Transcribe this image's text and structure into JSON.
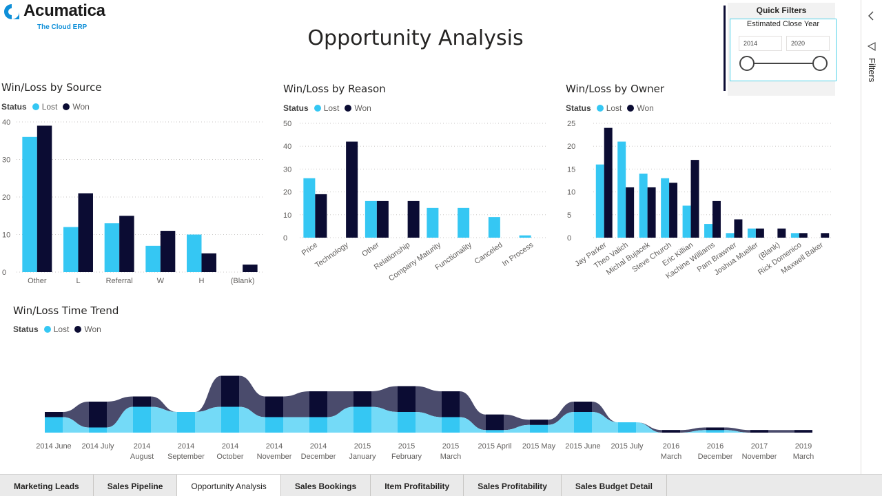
{
  "app": {
    "logo_text": "Acumatica",
    "logo_tagline": "The Cloud ERP",
    "page_title": "Opportunity Analysis"
  },
  "colors": {
    "lost": "#35c7f3",
    "won": "#0b0c33",
    "lost_area": "#74daf7",
    "won_area": "#4a4b6c"
  },
  "quick_filters": {
    "title": "Quick Filters",
    "field_label": "Estimated Close Year",
    "from_value": "2014",
    "to_value": "2020"
  },
  "filters_pane": {
    "label": "Filters",
    "collapse_icon": "chevron-left-icon",
    "filter_icon": "funnel-icon"
  },
  "legend": {
    "status_label": "Status",
    "lost_label": "Lost",
    "won_label": "Won"
  },
  "chart_data": [
    {
      "id": "source",
      "type": "bar",
      "title": "Win/Loss by Source",
      "categories": [
        "Other",
        "L",
        "Referral",
        "W",
        "H",
        "(Blank)"
      ],
      "series": [
        {
          "name": "Lost",
          "values": [
            36,
            12,
            13,
            7,
            10,
            0
          ]
        },
        {
          "name": "Won",
          "values": [
            39,
            21,
            15,
            11,
            5,
            2
          ]
        }
      ],
      "ylim": [
        0,
        40
      ],
      "yticks": [
        0,
        10,
        20,
        30,
        40
      ]
    },
    {
      "id": "reason",
      "type": "bar",
      "title": "Win/Loss by Reason",
      "categories": [
        "Price",
        "Technology",
        "Other",
        "Relationship",
        "Company Maturity",
        "Functionality",
        "Canceled",
        "In Process"
      ],
      "series": [
        {
          "name": "Lost",
          "values": [
            26,
            0,
            16,
            0,
            13,
            13,
            9,
            1
          ]
        },
        {
          "name": "Won",
          "values": [
            19,
            42,
            16,
            16,
            0,
            0,
            0,
            0
          ]
        }
      ],
      "ylim": [
        0,
        50
      ],
      "yticks": [
        0,
        10,
        20,
        30,
        40,
        50
      ]
    },
    {
      "id": "owner",
      "type": "bar",
      "title": "Win/Loss by Owner",
      "categories": [
        "Jay Parker",
        "Theo Valich",
        "Michal Bujacek",
        "Steve Church",
        "Eric Killian",
        "Kachine Williams",
        "Pam Brawner",
        "Joshua Mueller",
        "(Blank)",
        "Rick Domenico",
        "Maxwell Baker"
      ],
      "series": [
        {
          "name": "Lost",
          "values": [
            16,
            21,
            14,
            13,
            7,
            3,
            1,
            2,
            0,
            1,
            0
          ]
        },
        {
          "name": "Won",
          "values": [
            24,
            11,
            11,
            12,
            17,
            8,
            4,
            2,
            2,
            1,
            1
          ]
        }
      ],
      "ylim": [
        0,
        25
      ],
      "yticks": [
        0,
        5,
        10,
        15,
        20,
        25
      ]
    },
    {
      "id": "trend",
      "type": "area",
      "title": "Win/Loss Time Trend",
      "x": [
        [
          "2014 June",
          ""
        ],
        [
          "2014 July",
          ""
        ],
        [
          "2014",
          "August"
        ],
        [
          "2014",
          "September"
        ],
        [
          "2014",
          "October"
        ],
        [
          "2014",
          "November"
        ],
        [
          "2014",
          "December"
        ],
        [
          "2015",
          "January"
        ],
        [
          "2015",
          "February"
        ],
        [
          "2015",
          "March"
        ],
        [
          "2015 April",
          ""
        ],
        [
          "2015 May",
          ""
        ],
        [
          "2015 June",
          ""
        ],
        [
          "2015 July",
          ""
        ],
        [
          "2016",
          "March"
        ],
        [
          "2016",
          "December"
        ],
        [
          "2017",
          "November"
        ],
        [
          "2019",
          "March"
        ]
      ],
      "series": [
        {
          "name": "Lost",
          "values": [
            3,
            1,
            5,
            4,
            5,
            3,
            3,
            5,
            4,
            3,
            0.5,
            1.5,
            4,
            2,
            0,
            0.5,
            0,
            0
          ]
        },
        {
          "name": "Won",
          "values": [
            1,
            5,
            2,
            0,
            6,
            4,
            5,
            3,
            5,
            5,
            3,
            1,
            2,
            0,
            0.5,
            0.5,
            0.5,
            0.5
          ]
        }
      ]
    }
  ],
  "tabs": [
    {
      "label": "Marketing Leads",
      "active": false
    },
    {
      "label": "Sales Pipeline",
      "active": false
    },
    {
      "label": "Opportunity Analysis",
      "active": true
    },
    {
      "label": "Sales Bookings",
      "active": false
    },
    {
      "label": "Item Profitability",
      "active": false
    },
    {
      "label": "Sales Profitability",
      "active": false
    },
    {
      "label": "Sales Budget Detail",
      "active": false
    }
  ]
}
